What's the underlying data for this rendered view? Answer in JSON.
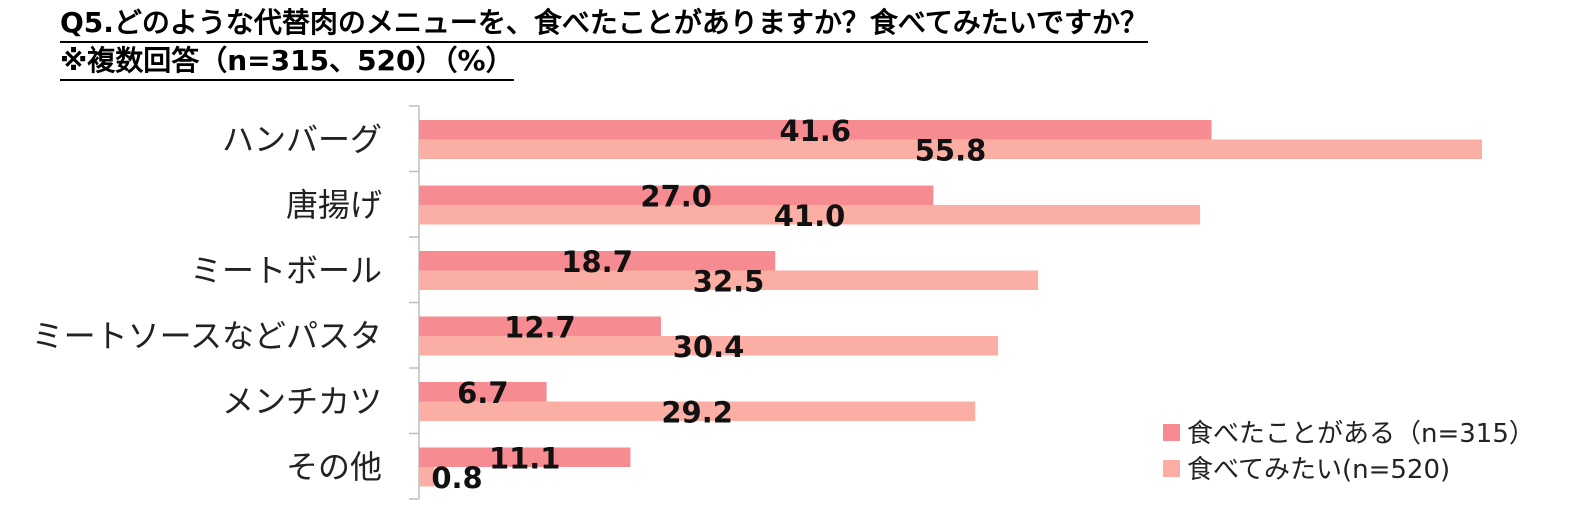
{
  "title": {
    "line1": "Q5.どのような代替肉のメニューを、食べたことがありますか？食べてみたいですか？",
    "line2": "※複数回答（n=315、520）（%）"
  },
  "chart_data": {
    "type": "bar",
    "orientation": "horizontal",
    "categories": [
      "ハンバーグ",
      "唐揚げ",
      "ミートボール",
      "ミートソースなどパスタ",
      "メンチカツ",
      "その他"
    ],
    "series": [
      {
        "name": "食べたことがある（n=315）",
        "values": [
          41.6,
          27.0,
          18.7,
          12.7,
          6.7,
          11.1
        ],
        "color": "#f78b92"
      },
      {
        "name": "食べてみたい(n=520)",
        "values": [
          55.8,
          41.0,
          32.5,
          30.4,
          29.2,
          0.8
        ],
        "color": "#fbaea3"
      }
    ],
    "value_labels": [
      [
        "41.6",
        "27.0",
        "18.7",
        "12.7",
        "6.7",
        "11.1"
      ],
      [
        "55.8",
        "41.0",
        "32.5",
        "30.4",
        "29.2",
        "0.8"
      ]
    ],
    "xlim": [
      0,
      58
    ],
    "grid": false,
    "legend_position": "bottom-right"
  }
}
